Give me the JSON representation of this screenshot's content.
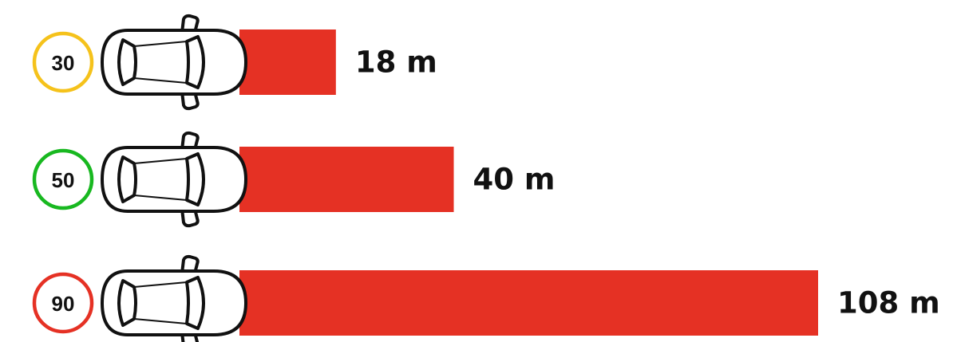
{
  "chart_data": {
    "type": "bar",
    "orientation": "horizontal",
    "categories": [
      "30",
      "50",
      "90"
    ],
    "values": [
      18,
      40,
      108
    ],
    "value_labels": [
      "18 m",
      "40 m",
      "108 m"
    ],
    "unit": "m",
    "bar_color": "#e53124",
    "speed_ring_colors": [
      "#f5c21b",
      "#18b820",
      "#e53124"
    ],
    "icons": [
      "car-icon",
      "car-icon",
      "car-icon"
    ],
    "grid": false,
    "legend": "none"
  }
}
